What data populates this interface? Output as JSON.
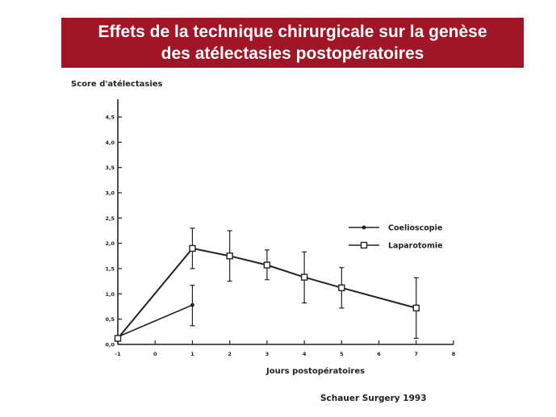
{
  "title": {
    "line1": "Effets de la technique chirurgicale sur la genèse",
    "line2": "des atélectasies postopératoires"
  },
  "source": "Schauer Surgery 1993",
  "colors": {
    "banner": "#a01626",
    "ink": "#222222"
  },
  "chart_data": {
    "type": "line",
    "ylabel": "Score d'atélectasies",
    "xlabel": "Jours postopératoires",
    "xlim": [
      -1,
      8
    ],
    "ylim": [
      0,
      4.5
    ],
    "x_ticks": [
      -1,
      0,
      1,
      2,
      3,
      4,
      5,
      6,
      7,
      8
    ],
    "x_tick_labels": [
      "-1",
      "0",
      "1",
      "2",
      "3",
      "4",
      "5",
      "6",
      "7",
      "8"
    ],
    "y_ticks": [
      0,
      0.5,
      1.0,
      1.5,
      2.0,
      2.5,
      3.0,
      3.5,
      4.0,
      4.5
    ],
    "y_tick_labels": [
      "0,0",
      "0,5",
      "1,0",
      "1,5",
      "2,0",
      "2,5",
      "3,0",
      "3,5",
      "4,0",
      "4,5"
    ],
    "legend_position": "right",
    "grid": false,
    "series": [
      {
        "name": "Coelioscopie",
        "marker": "dot",
        "x": [
          -1,
          1
        ],
        "y": [
          0.15,
          0.78
        ],
        "err_low": [
          null,
          0.37
        ],
        "err_high": [
          null,
          1.17
        ]
      },
      {
        "name": "Laparotomie",
        "marker": "open-square",
        "x": [
          -1,
          1,
          2,
          3,
          4,
          5,
          7
        ],
        "y": [
          0.12,
          1.9,
          1.75,
          1.57,
          1.33,
          1.12,
          0.72
        ],
        "err_low": [
          null,
          1.5,
          1.25,
          1.28,
          0.82,
          0.72,
          0.12
        ],
        "err_high": [
          null,
          2.3,
          2.25,
          1.87,
          1.83,
          1.52,
          1.32
        ]
      }
    ]
  }
}
